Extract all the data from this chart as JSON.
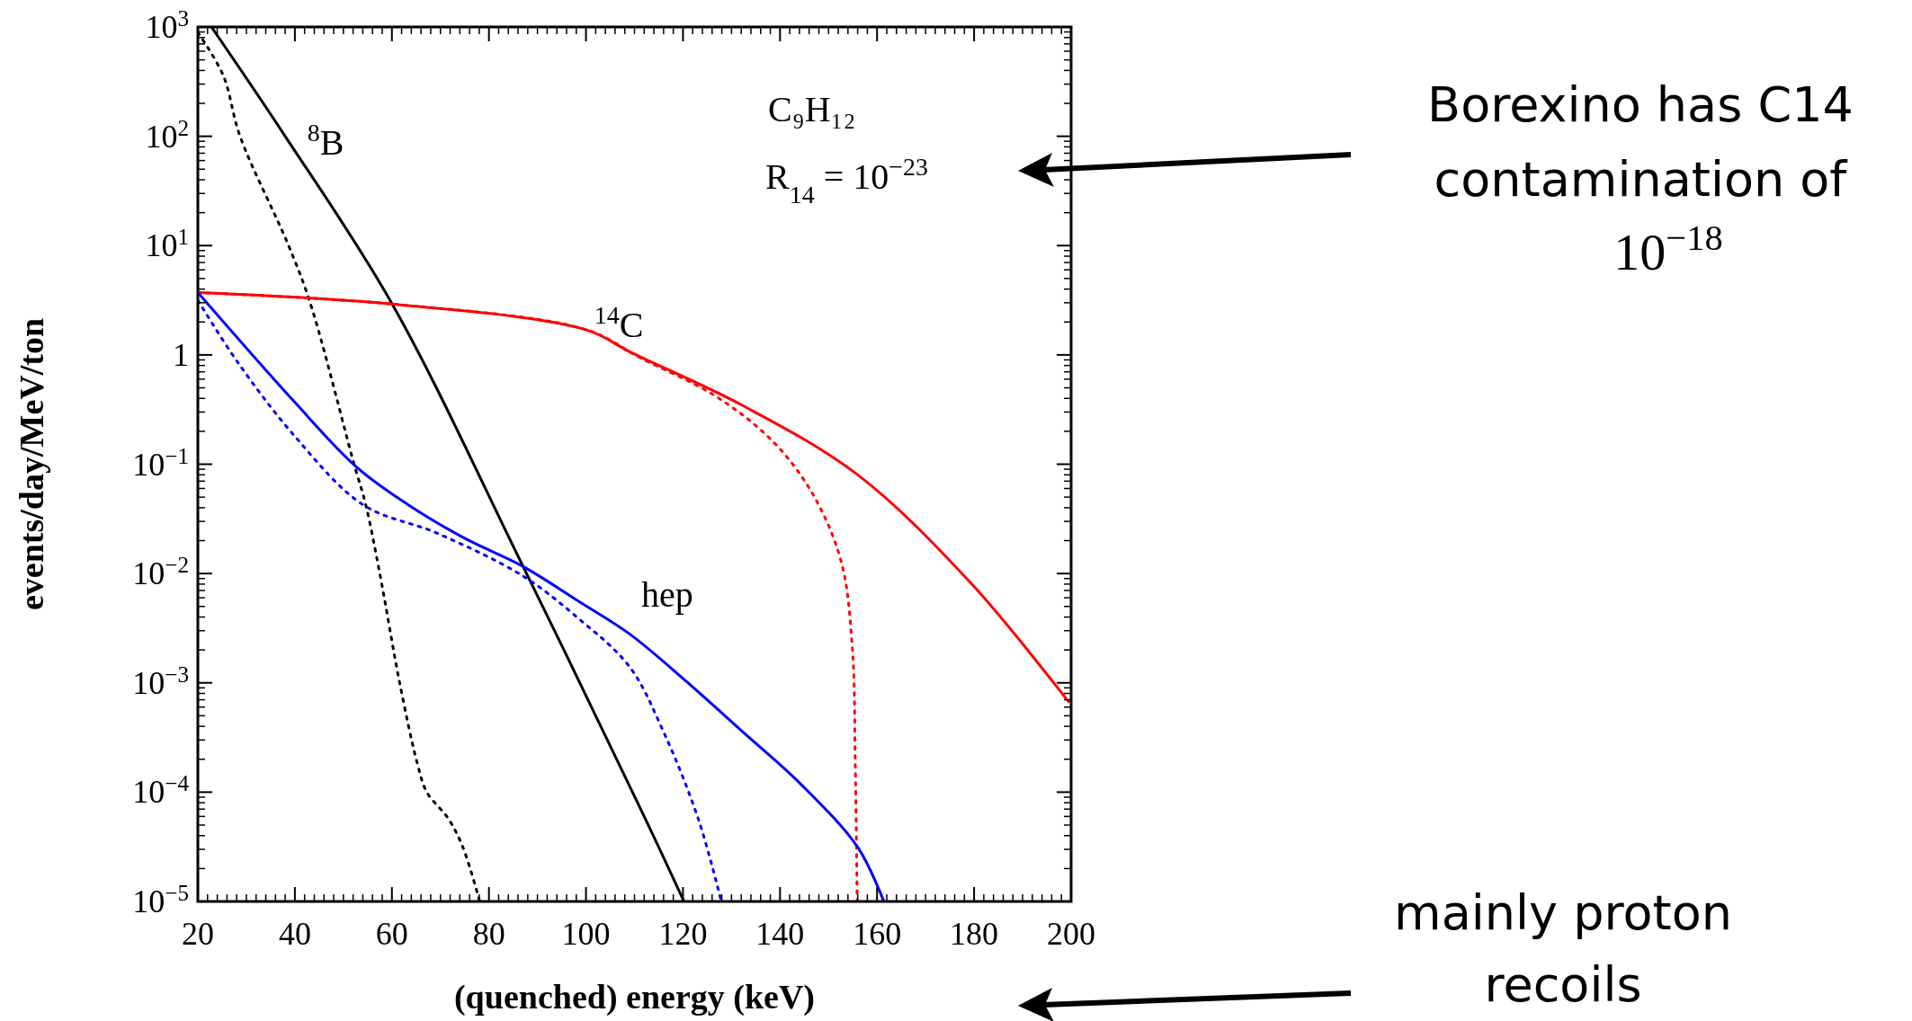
{
  "chart_data": {
    "type": "line",
    "xlabel": "(quenched) energy (keV)",
    "ylabel": "events/day/MeV/ton",
    "log": "y",
    "xlim": [
      20,
      200
    ],
    "ylim": [
      1e-05,
      1000
    ],
    "xticks": [
      20,
      40,
      60,
      80,
      100,
      120,
      140,
      160,
      180,
      200
    ],
    "yticks": [
      {
        "value": 1e-05,
        "label": "10$^{−5}$"
      },
      {
        "value": 0.0001,
        "label": "10$^{−4}$"
      },
      {
        "value": 0.001,
        "label": "10$^{−3}$"
      },
      {
        "value": 0.01,
        "label": "10$^{−2}$"
      },
      {
        "value": 0.1,
        "label": "10$^{−1}$"
      },
      {
        "value": 1,
        "label": "1"
      },
      {
        "value": 10,
        "label": "10$^{1}$"
      },
      {
        "value": 100,
        "label": "10$^{2}$"
      },
      {
        "value": 1000,
        "label": "10$^{3}$"
      }
    ],
    "series": [
      {
        "color": "#000000",
        "line_style": "solid",
        "x": [
          22.8,
          38,
          60,
          87,
          112,
          120.2
        ],
        "values": [
          1000,
          100,
          2.95,
          0.0117,
          6e-05,
          1e-05
        ]
      },
      {
        "color": "#000000",
        "line_style": "dotted",
        "x": [
          20,
          25.2,
          28.7,
          38.7,
          43.2,
          52.2,
          54.6,
          57.5,
          61.6,
          65.2,
          67.2,
          71.6,
          74.6,
          78.1
        ],
        "values": [
          891,
          363,
          100,
          10,
          2.95,
          0.1,
          0.0427,
          0.01,
          0.001,
          0.000186,
          0.0001,
          5.75e-05,
          3.16e-05,
          1e-05
        ]
      },
      {
        "color": "#ff0000",
        "line_style": "solid",
        "x": [
          20,
          60,
          100,
          109,
          132.6,
          156.1,
          179.6,
          199.6
        ],
        "values": [
          3.72,
          2.92,
          1.7,
          1.07,
          0.339,
          0.0794,
          0.00794,
          0.00066
        ]
      },
      {
        "color": "#ff0000",
        "line_style": "dotted",
        "x": [
          20,
          60,
          100,
          111.4,
          126.7,
          138.5,
          146.7,
          152.6,
          154.9,
          155.5,
          155.9
        ],
        "values": [
          3.72,
          2.92,
          1.7,
          0.93,
          0.42,
          0.162,
          0.0537,
          0.0129,
          0.00209,
          0.000186,
          1e-05
        ]
      },
      {
        "color": "#0000ff",
        "line_style": "solid",
        "x": [
          20,
          39.9,
          52.8,
          63.3,
          75.1,
          86.9,
          98.7,
          109,
          120.8,
          132.6,
          144.4,
          156.1,
          161.4
        ],
        "values": [
          3.72,
          0.372,
          0.0933,
          0.0427,
          0.0209,
          0.0117,
          0.0055,
          0.0028,
          0.00102,
          0.000347,
          0.000117,
          3.09e-05,
          1e-05
        ]
      },
      {
        "color": "#0000ff",
        "line_style": "dotted",
        "x": [
          20,
          28.1,
          39.9,
          54,
          69.3,
          86.9,
          98.7,
          109,
          116.1,
          123.2,
          127.9
        ],
        "values": [
          3.16,
          0.871,
          0.182,
          0.0427,
          0.0234,
          0.00955,
          0.0038,
          0.0014,
          0.000347,
          5.6e-05,
          1e-05
        ]
      }
    ],
    "annotations": [
      "$^{8}$B",
      "$^{14}$C",
      "hep",
      "C₉H₁₂",
      "R$_{14}$ = 10$^{−23}$",
      "Borexino has C14 contamination of 10$^{−18}$",
      "mainly proton recoils"
    ]
  }
}
